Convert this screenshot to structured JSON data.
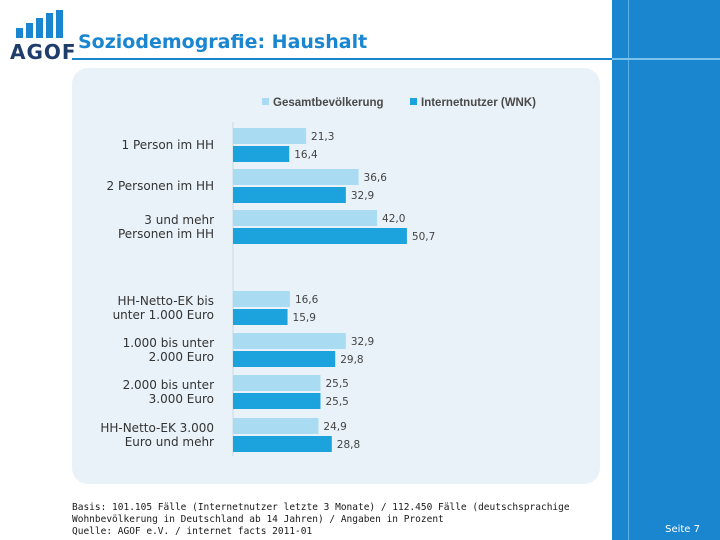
{
  "header": {
    "logo_text": "AGOF",
    "title": "Soziodemografie: Haushalt",
    "brand_color": "#1a86d0"
  },
  "chart_data": {
    "type": "bar",
    "orientation": "horizontal",
    "categories": [
      "1 Person im HH",
      "2 Personen im HH",
      "3 und mehr Personen im HH",
      "HH-Netto-EK bis unter 1.000 Euro",
      "1.000 bis unter 2.000 Euro",
      "2.000 bis unter 3.000 Euro",
      "HH-Netto-EK 3.000 Euro und mehr"
    ],
    "category_lines": [
      [
        "1 Person im HH"
      ],
      [
        "2 Personen im HH"
      ],
      [
        "3 und mehr",
        "Personen im HH"
      ],
      [
        "HH-Netto-EK bis",
        "unter 1.000 Euro"
      ],
      [
        "1.000 bis unter",
        "2.000 Euro"
      ],
      [
        "2.000 bis unter",
        "3.000 Euro"
      ],
      [
        "HH-Netto-EK 3.000",
        "Euro und mehr"
      ]
    ],
    "series": [
      {
        "name": "Gesamtbevölkerung",
        "color": "#a9dcf3",
        "values": [
          21.3,
          36.6,
          42.0,
          16.6,
          32.9,
          25.5,
          24.9
        ],
        "labels": [
          "21,3",
          "36,6",
          "42,0",
          "16,6",
          "32,9",
          "25,5",
          "24,9"
        ]
      },
      {
        "name": "Internetnutzer (WNK)",
        "color": "#1ca2dc",
        "values": [
          16.4,
          32.9,
          50.7,
          15.9,
          29.8,
          25.5,
          28.8
        ],
        "labels": [
          "16,4",
          "32,9",
          "50,7",
          "15,9",
          "29,8",
          "25,5",
          "28,8"
        ]
      }
    ],
    "xlim": [
      0,
      60
    ],
    "legend": "top",
    "grid": false,
    "unit": "Prozent"
  },
  "footnote": {
    "line1": "Basis: 101.105 Fälle (Internetnutzer letzte 3 Monate) / 112.450 Fälle (deutschsprachige",
    "line2": "Wohnbevölkerung in Deutschland ab 14 Jahren) / Angaben in Prozent",
    "line3": "Quelle: AGOF e.V. / internet facts 2011-01"
  },
  "page": {
    "label": "Seite 7"
  }
}
